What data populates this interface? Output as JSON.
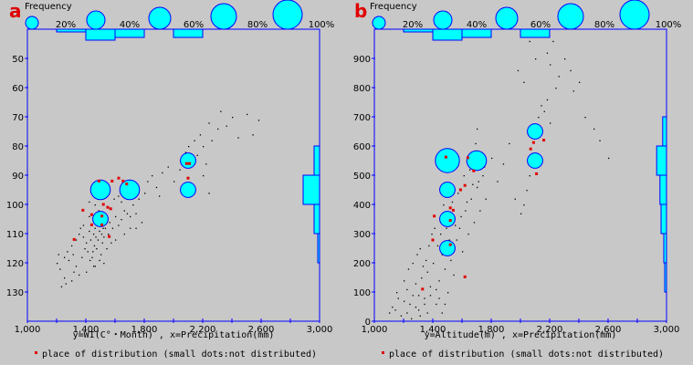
{
  "colors": {
    "axis": "#0000ff",
    "bubble": "#00ffff",
    "distributed": "#e00000",
    "dot": "#000000",
    "panel_label": "#e00000"
  },
  "chart_data": [
    {
      "type": "scatter",
      "panel": "a",
      "legend_title": "Frequency",
      "size_legend": [
        "20%",
        "40%",
        "60%",
        "80%",
        "100%"
      ],
      "xlabel": "y=WI(C°・Month) , x=Precipitation(mm)",
      "note": "place of distribution (small dots:not distributed)",
      "xlim": [
        1000,
        3000
      ],
      "ylim": [
        40,
        140
      ],
      "y_inverted": true,
      "xticks": [
        "1,000",
        "1,400",
        "1,800",
        "2,200",
        "2,600",
        "3,000"
      ],
      "xtick_values": [
        1000,
        1400,
        1800,
        2200,
        2600,
        3000
      ],
      "yticks": [
        "50",
        "60",
        "70",
        "80",
        "90",
        "100",
        "110",
        "120",
        "130"
      ],
      "ytick_values": [
        50,
        60,
        70,
        80,
        90,
        100,
        110,
        120,
        130
      ],
      "bubbles": [
        {
          "x": 1500,
          "y": 95,
          "freq": 0.4
        },
        {
          "x": 1700,
          "y": 95,
          "freq": 0.4
        },
        {
          "x": 2100,
          "y": 85,
          "freq": 0.2
        },
        {
          "x": 2100,
          "y": 95,
          "freq": 0.2
        },
        {
          "x": 1500,
          "y": 105,
          "freq": 0.2
        }
      ],
      "top_histogram": [
        {
          "from": 1200,
          "to": 1400,
          "freq": 0.05
        },
        {
          "from": 1400,
          "to": 1600,
          "freq": 0.2
        },
        {
          "from": 1600,
          "to": 1800,
          "freq": 0.15
        },
        {
          "from": 2000,
          "to": 2200,
          "freq": 0.15
        }
      ],
      "right_histogram": [
        {
          "from": 80,
          "to": 90,
          "freq": 0.1
        },
        {
          "from": 90,
          "to": 100,
          "freq": 0.3
        },
        {
          "from": 100,
          "to": 110,
          "freq": 0.1
        },
        {
          "from": 110,
          "to": 120,
          "freq": 0.03
        }
      ],
      "distributed_points": [
        [
          1490,
          92
        ],
        [
          1580,
          92
        ],
        [
          1625,
          91
        ],
        [
          1520,
          100
        ],
        [
          1550,
          101
        ],
        [
          1570,
          101.5
        ],
        [
          1440,
          103.5
        ],
        [
          1510,
          104
        ],
        [
          1510,
          107
        ],
        [
          1440,
          107
        ],
        [
          1560,
          111
        ],
        [
          1320,
          112
        ],
        [
          1680,
          93
        ],
        [
          1655,
          92
        ],
        [
          2090,
          86
        ],
        [
          2110,
          86
        ],
        [
          2100,
          91
        ],
        [
          1380,
          102
        ]
      ],
      "other_points": [
        [
          1200,
          120
        ],
        [
          1220,
          122
        ],
        [
          1250,
          118
        ],
        [
          1270,
          116
        ],
        [
          1300,
          114
        ],
        [
          1330,
          112
        ],
        [
          1350,
          110
        ],
        [
          1360,
          108
        ],
        [
          1380,
          111
        ],
        [
          1400,
          113
        ],
        [
          1420,
          109
        ],
        [
          1430,
          112
        ],
        [
          1450,
          110
        ],
        [
          1460,
          108
        ],
        [
          1470,
          115
        ],
        [
          1480,
          112
        ],
        [
          1490,
          109
        ],
        [
          1500,
          117
        ],
        [
          1510,
          113
        ],
        [
          1520,
          111
        ],
        [
          1530,
          108
        ],
        [
          1540,
          115
        ],
        [
          1550,
          110
        ],
        [
          1560,
          106
        ],
        [
          1570,
          113
        ],
        [
          1580,
          108
        ],
        [
          1600,
          112
        ],
        [
          1620,
          107
        ],
        [
          1640,
          105
        ],
        [
          1660,
          110
        ],
        [
          1680,
          103
        ],
        [
          1700,
          104
        ],
        [
          1720,
          100
        ],
        [
          1740,
          103
        ],
        [
          1760,
          98
        ],
        [
          1800,
          96
        ],
        [
          1820,
          92
        ],
        [
          1850,
          90
        ],
        [
          1880,
          94
        ],
        [
          1900,
          97
        ],
        [
          1920,
          89
        ],
        [
          1960,
          87
        ],
        [
          2000,
          92
        ],
        [
          2040,
          88
        ],
        [
          2060,
          94
        ],
        [
          2080,
          82
        ],
        [
          2100,
          80
        ],
        [
          2140,
          78
        ],
        [
          2160,
          83
        ],
        [
          2180,
          76
        ],
        [
          2200,
          80
        ],
        [
          2220,
          86
        ],
        [
          2240,
          72
        ],
        [
          2260,
          78
        ],
        [
          2300,
          74
        ],
        [
          2320,
          68
        ],
        [
          2360,
          73
        ],
        [
          2400,
          70
        ],
        [
          2440,
          77
        ],
        [
          2500,
          69
        ],
        [
          2540,
          76
        ],
        [
          2580,
          71
        ],
        [
          2200,
          90
        ],
        [
          2240,
          96
        ],
        [
          1250,
          125
        ],
        [
          1230,
          128
        ],
        [
          1300,
          126
        ],
        [
          1350,
          124
        ],
        [
          1400,
          123
        ],
        [
          1450,
          121
        ],
        [
          1280,
          119
        ],
        [
          1310,
          117
        ],
        [
          1330,
          121
        ],
        [
          1370,
          118
        ],
        [
          1390,
          115
        ],
        [
          1410,
          116
        ],
        [
          1440,
          118
        ],
        [
          1460,
          121
        ],
        [
          1490,
          119
        ],
        [
          1520,
          120
        ],
        [
          1380,
          107
        ],
        [
          1420,
          104
        ],
        [
          1460,
          100
        ],
        [
          1480,
          98
        ],
        [
          1420,
          99
        ],
        [
          1540,
          96
        ],
        [
          1590,
          98
        ],
        [
          1620,
          97
        ],
        [
          1640,
          99
        ],
        [
          1660,
          102
        ],
        [
          1700,
          108
        ],
        [
          1740,
          108
        ],
        [
          1780,
          106
        ],
        [
          1600,
          104
        ],
        [
          1520,
          105
        ],
        [
          1530,
          103
        ],
        [
          1475,
          106
        ],
        [
          1485,
          102
        ],
        [
          1495,
          104
        ],
        [
          1505,
          110
        ],
        [
          1515,
          108
        ],
        [
          1465,
          111
        ],
        [
          1455,
          114
        ],
        [
          1445,
          116
        ],
        [
          1425,
          119
        ],
        [
          1315,
          123
        ],
        [
          1260,
          127
        ],
        [
          1210,
          117
        ]
      ]
    },
    {
      "type": "scatter",
      "panel": "b",
      "legend_title": "Frequency",
      "size_legend": [
        "20%",
        "40%",
        "60%",
        "80%",
        "100%"
      ],
      "xlabel": "y=Altitude(m) , x=Precipitation(mm)",
      "note": "place of distribution (small dots:not distributed)",
      "xlim": [
        1000,
        3000
      ],
      "ylim": [
        0,
        1000
      ],
      "y_inverted": false,
      "xticks": [
        "1,000",
        "1,400",
        "1,800",
        "2,200",
        "2,600",
        "3,000"
      ],
      "xtick_values": [
        1000,
        1400,
        1800,
        2200,
        2600,
        3000
      ],
      "yticks": [
        "0",
        "100",
        "200",
        "300",
        "400",
        "500",
        "600",
        "700",
        "800",
        "900"
      ],
      "ytick_values": [
        0,
        100,
        200,
        300,
        400,
        500,
        600,
        700,
        800,
        900
      ],
      "bubbles": [
        {
          "x": 1500,
          "y": 550,
          "freq": 0.6
        },
        {
          "x": 1700,
          "y": 550,
          "freq": 0.4
        },
        {
          "x": 2100,
          "y": 650,
          "freq": 0.2
        },
        {
          "x": 2100,
          "y": 550,
          "freq": 0.2
        },
        {
          "x": 1500,
          "y": 450,
          "freq": 0.2
        },
        {
          "x": 1500,
          "y": 350,
          "freq": 0.2
        },
        {
          "x": 1500,
          "y": 250,
          "freq": 0.2
        }
      ],
      "top_histogram": [
        {
          "from": 1200,
          "to": 1400,
          "freq": 0.05
        },
        {
          "from": 1400,
          "to": 1600,
          "freq": 0.2
        },
        {
          "from": 1600,
          "to": 1800,
          "freq": 0.15
        },
        {
          "from": 2000,
          "to": 2200,
          "freq": 0.15
        }
      ],
      "right_histogram": [
        {
          "from": 600,
          "to": 700,
          "freq": 0.07
        },
        {
          "from": 500,
          "to": 600,
          "freq": 0.18
        },
        {
          "from": 400,
          "to": 500,
          "freq": 0.12
        },
        {
          "from": 300,
          "to": 400,
          "freq": 0.1
        },
        {
          "from": 200,
          "to": 300,
          "freq": 0.05
        },
        {
          "from": 100,
          "to": 200,
          "freq": 0.03
        }
      ],
      "distributed_points": [
        [
          1490,
          562
        ],
        [
          1640,
          560
        ],
        [
          1680,
          515
        ],
        [
          1620,
          465
        ],
        [
          1590,
          450
        ],
        [
          1410,
          360
        ],
        [
          1520,
          388
        ],
        [
          1540,
          380
        ],
        [
          1520,
          345
        ],
        [
          1400,
          278
        ],
        [
          1520,
          262
        ],
        [
          1620,
          152
        ],
        [
          1330,
          110
        ],
        [
          2090,
          612
        ],
        [
          2070,
          590
        ],
        [
          2110,
          505
        ],
        [
          2160,
          620
        ]
      ],
      "other_points": [
        [
          1100,
          30
        ],
        [
          1120,
          50
        ],
        [
          1140,
          40
        ],
        [
          1160,
          80
        ],
        [
          1180,
          20
        ],
        [
          1200,
          70
        ],
        [
          1220,
          110
        ],
        [
          1240,
          60
        ],
        [
          1260,
          90
        ],
        [
          1280,
          130
        ],
        [
          1300,
          40
        ],
        [
          1320,
          150
        ],
        [
          1340,
          80
        ],
        [
          1360,
          170
        ],
        [
          1380,
          120
        ],
        [
          1400,
          200
        ],
        [
          1420,
          60
        ],
        [
          1440,
          140
        ],
        [
          1460,
          230
        ],
        [
          1480,
          180
        ],
        [
          1500,
          100
        ],
        [
          1520,
          210
        ],
        [
          1540,
          160
        ],
        [
          1560,
          280
        ],
        [
          1580,
          320
        ],
        [
          1600,
          240
        ],
        [
          1620,
          380
        ],
        [
          1640,
          300
        ],
        [
          1660,
          420
        ],
        [
          1680,
          340
        ],
        [
          1700,
          460
        ],
        [
          1720,
          380
        ],
        [
          1740,
          500
        ],
        [
          1760,
          420
        ],
        [
          1800,
          560
        ],
        [
          1840,
          480
        ],
        [
          1880,
          540
        ],
        [
          1920,
          610
        ],
        [
          1960,
          420
        ],
        [
          2000,
          370
        ],
        [
          2020,
          400
        ],
        [
          2040,
          450
        ],
        [
          2060,
          500
        ],
        [
          2080,
          530
        ],
        [
          2100,
          560
        ],
        [
          2120,
          700
        ],
        [
          2140,
          740
        ],
        [
          2160,
          720
        ],
        [
          2180,
          760
        ],
        [
          2200,
          680
        ],
        [
          2240,
          800
        ],
        [
          2260,
          840
        ],
        [
          2200,
          880
        ],
        [
          2180,
          920
        ],
        [
          2220,
          960
        ],
        [
          2300,
          900
        ],
        [
          2340,
          860
        ],
        [
          2360,
          790
        ],
        [
          2400,
          820
        ],
        [
          2440,
          700
        ],
        [
          2500,
          660
        ],
        [
          2540,
          620
        ],
        [
          2600,
          560
        ],
        [
          2060,
          960
        ],
        [
          2100,
          900
        ],
        [
          2020,
          820
        ],
        [
          1980,
          860
        ],
        [
          1200,
          140
        ],
        [
          1230,
          180
        ],
        [
          1260,
          200
        ],
        [
          1290,
          230
        ],
        [
          1310,
          250
        ],
        [
          1330,
          190
        ],
        [
          1350,
          210
        ],
        [
          1370,
          260
        ],
        [
          1390,
          300
        ],
        [
          1410,
          320
        ],
        [
          1430,
          260
        ],
        [
          1450,
          300
        ],
        [
          1470,
          400
        ],
        [
          1490,
          320
        ],
        [
          1510,
          280
        ],
        [
          1530,
          410
        ],
        [
          1550,
          330
        ],
        [
          1570,
          440
        ],
        [
          1590,
          360
        ],
        [
          1610,
          500
        ],
        [
          1630,
          410
        ],
        [
          1650,
          520
        ],
        [
          1670,
          470
        ],
        [
          1690,
          610
        ],
        [
          1710,
          480
        ],
        [
          1730,
          580
        ],
        [
          1750,
          530
        ],
        [
          1220,
          30
        ],
        [
          1250,
          10
        ],
        [
          1280,
          50
        ],
        [
          1310,
          20
        ],
        [
          1340,
          60
        ],
        [
          1360,
          30
        ],
        [
          1380,
          90
        ],
        [
          1420,
          110
        ],
        [
          1440,
          80
        ],
        [
          1460,
          30
        ],
        [
          1480,
          60
        ],
        [
          1300,
          90
        ],
        [
          1150,
          100
        ],
        [
          1700,
          660
        ]
      ]
    }
  ]
}
